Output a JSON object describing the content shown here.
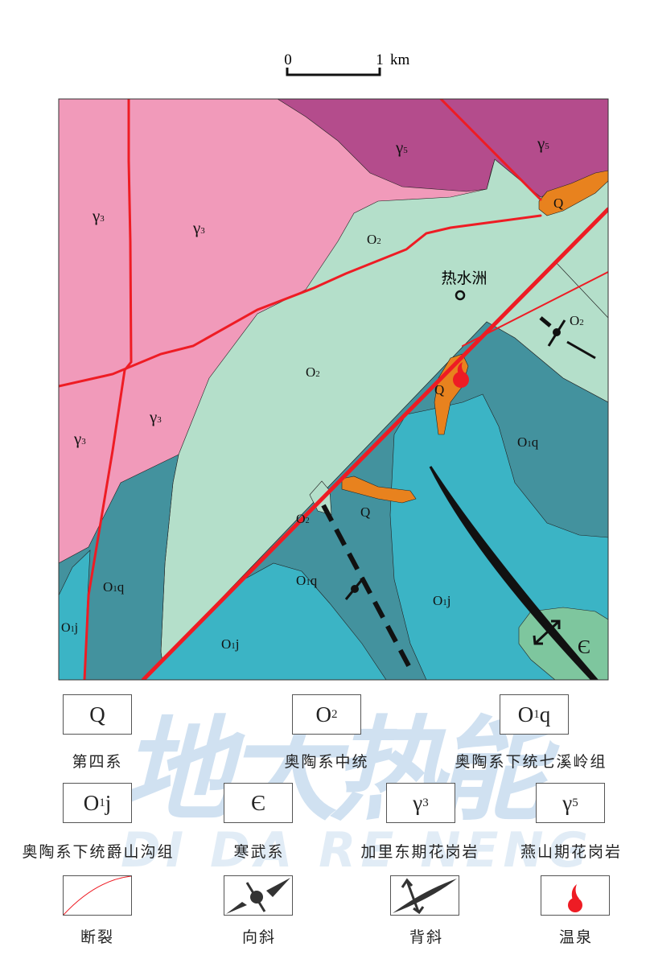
{
  "scale_bar": {
    "start": "0",
    "end": "1",
    "unit": "km"
  },
  "place_name": "热水洲",
  "map_labels": {
    "g3_a": {
      "main": "γ",
      "sub": "3"
    },
    "g3_b": {
      "main": "γ",
      "sub": "3"
    },
    "g3_c": {
      "main": "γ",
      "sub": "3"
    },
    "g3_d": {
      "main": "γ",
      "sub": "3"
    },
    "g5_a": {
      "main": "γ",
      "sub": "5"
    },
    "g5_b": {
      "main": "γ",
      "sub": "5"
    },
    "o2_a": {
      "main": "O",
      "sub": "2"
    },
    "o2_b": {
      "main": "O",
      "sub": "2"
    },
    "o2_c": {
      "main": "O",
      "sub": "2"
    },
    "o2_d": {
      "main": "O",
      "sub": "2"
    },
    "q_a": "Q",
    "q_b": "Q",
    "q_c": "Q",
    "o1q_a": {
      "main": "O",
      "sub": "1",
      "suffix": "q"
    },
    "o1q_b": {
      "main": "O",
      "sub": "1",
      "suffix": "q"
    },
    "o1q_c": {
      "main": "O",
      "sub": "1",
      "suffix": "q"
    },
    "o1j_a": {
      "main": "O",
      "sub": "1",
      "suffix": "j"
    },
    "o1j_b": {
      "main": "O",
      "sub": "1",
      "suffix": "j"
    },
    "o1j_c": {
      "main": "O",
      "sub": "1",
      "suffix": "j"
    },
    "cambrian": "Є"
  },
  "colors": {
    "gamma3": "#f19aba",
    "gamma5": "#b44c8c",
    "o2": "#b4dfca",
    "o1q": "#43929e",
    "o1j": "#3bb4c5",
    "q": "#e8821e",
    "cambrian": "#7ec69e",
    "fault": "#ee1c24",
    "hot_spring": "#ee1c24"
  },
  "legend": [
    {
      "symbol": {
        "main": "Q"
      },
      "label": "第四系"
    },
    {
      "symbol": {
        "main": "O",
        "sub": "2"
      },
      "label": "奥陶系中统"
    },
    {
      "symbol": {
        "main": "O",
        "sub": "1",
        "suffix": "q"
      },
      "label": "奥陶系下统七溪岭组"
    },
    {
      "symbol": {
        "main": "O",
        "sub": "1",
        "suffix": "j"
      },
      "label": "奥陶系下统爵山沟组"
    },
    {
      "symbol": {
        "main": "Є"
      },
      "label": "寒武系"
    },
    {
      "symbol": {
        "main": "γ",
        "sub": "3"
      },
      "label": "加里东期花岗岩"
    },
    {
      "symbol": {
        "main": "γ",
        "sub": "5"
      },
      "label": "燕山期花岗岩"
    },
    {
      "icon": "fault-line-icon",
      "label": "断裂"
    },
    {
      "icon": "syncline-icon",
      "label": "向斜"
    },
    {
      "icon": "anticline-icon",
      "label": "背斜"
    },
    {
      "icon": "hot-spring-icon",
      "label": "温泉"
    }
  ],
  "watermark": {
    "cn": "地大热能",
    "en": "DI DA RE NENG"
  }
}
